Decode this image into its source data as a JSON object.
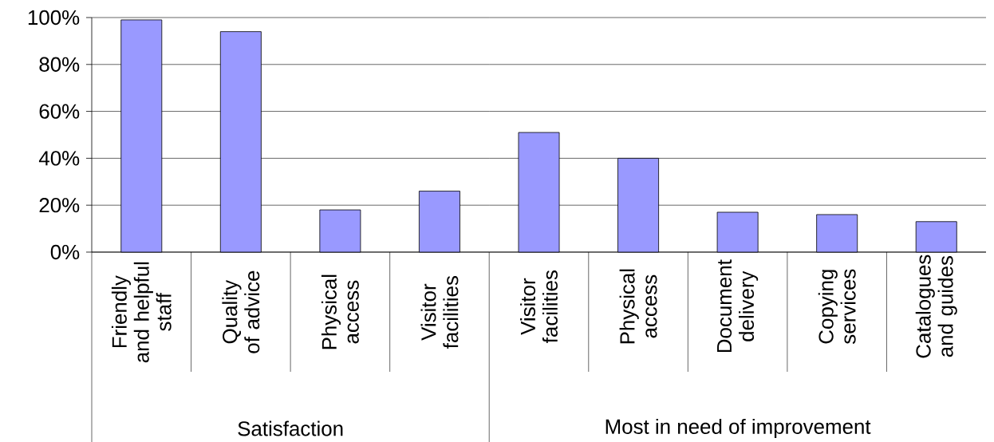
{
  "chart_data": [
    {
      "type": "bar",
      "xlabel": "Satisfaction",
      "categories": [
        "Friendly and helpful staff",
        "Quality of advice",
        "Physical access",
        "Visitor facilities"
      ],
      "values": [
        99,
        94,
        18,
        26
      ],
      "color": "#9999ff",
      "ylim": [
        0,
        100
      ],
      "yticks": [
        {
          "value": 0,
          "label": "0%"
        },
        {
          "value": 20,
          "label": "20%"
        },
        {
          "value": 40,
          "label": "40%"
        },
        {
          "value": 60,
          "label": "60%"
        },
        {
          "value": 80,
          "label": "80%"
        },
        {
          "value": 100,
          "label": "100%"
        }
      ],
      "grid": "y"
    },
    {
      "type": "bar",
      "xlabel": "Most in need of improvement",
      "categories": [
        "Visitor facilities",
        "Physical access",
        "Document delivery",
        "Copying services",
        "Catalogues and guides"
      ],
      "values": [
        51,
        40,
        17,
        16,
        13
      ],
      "color": "#9999ff",
      "ylim": [
        0,
        100
      ],
      "yticks": [
        {
          "value": 0,
          "label": null
        },
        {
          "value": 20,
          "label": null
        },
        {
          "value": 40,
          "label": null
        },
        {
          "value": 60,
          "label": null
        },
        {
          "value": 80,
          "label": null
        },
        {
          "value": 100,
          "label": null
        }
      ],
      "grid": "y",
      "tick_labels": "x"
    }
  ]
}
